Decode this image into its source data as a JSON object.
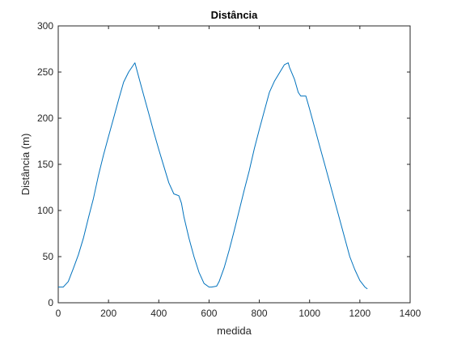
{
  "chart_data": {
    "type": "line",
    "title": "Distância",
    "xlabel": "medida",
    "ylabel": "Distância (m)",
    "xlim": [
      0,
      1400
    ],
    "ylim": [
      0,
      300
    ],
    "xticks": [
      0,
      200,
      400,
      600,
      800,
      1000,
      1200,
      1400
    ],
    "yticks": [
      0,
      50,
      100,
      150,
      200,
      250,
      300
    ],
    "grid": false,
    "box": true,
    "series": [
      {
        "color": "#0072BD",
        "x": [
          0,
          20,
          40,
          60,
          80,
          100,
          120,
          140,
          160,
          180,
          200,
          220,
          240,
          260,
          280,
          300,
          305,
          320,
          340,
          360,
          380,
          400,
          420,
          440,
          460,
          470,
          480,
          490,
          500,
          520,
          540,
          560,
          580,
          600,
          610,
          630,
          640,
          660,
          680,
          700,
          720,
          740,
          760,
          780,
          800,
          820,
          840,
          860,
          880,
          900,
          915,
          920,
          940,
          955,
          965,
          975,
          985,
          1000,
          1020,
          1040,
          1060,
          1080,
          1100,
          1120,
          1140,
          1160,
          1180,
          1200,
          1220,
          1230
        ],
        "y": [
          17,
          17,
          23,
          37,
          52,
          70,
          92,
          113,
          138,
          160,
          180,
          200,
          220,
          239,
          250,
          258,
          260,
          245,
          225,
          205,
          185,
          166,
          148,
          130,
          118,
          117,
          116,
          108,
          93,
          70,
          50,
          33,
          21,
          17,
          17,
          18,
          23,
          38,
          57,
          78,
          100,
          122,
          143,
          167,
          188,
          208,
          228,
          240,
          249,
          258,
          260,
          255,
          242,
          228,
          224,
          224,
          224,
          210,
          190,
          170,
          150,
          130,
          110,
          90,
          70,
          50,
          36,
          24,
          17,
          15
        ]
      }
    ]
  }
}
